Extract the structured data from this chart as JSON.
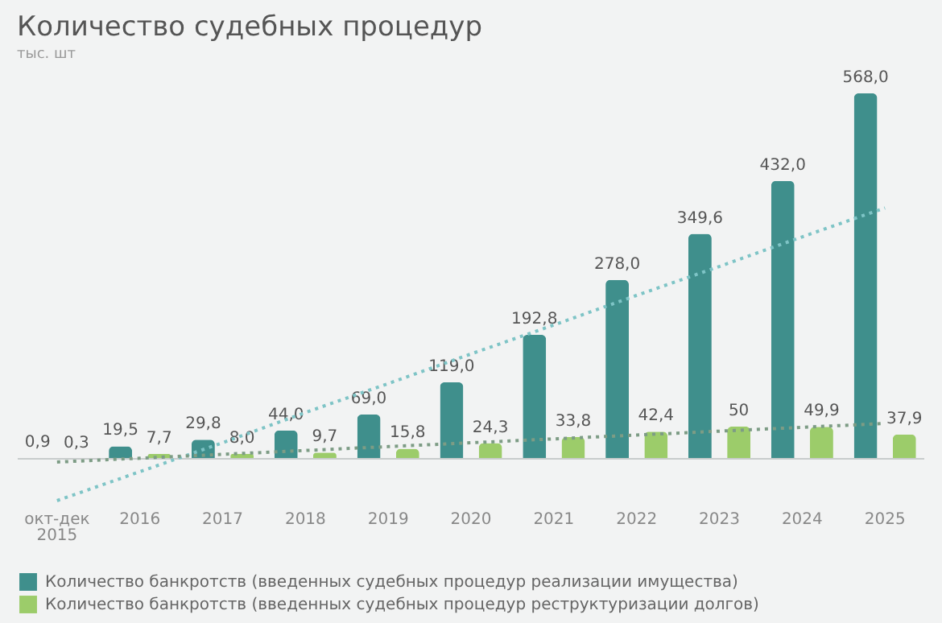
{
  "chart_data": {
    "type": "bar",
    "title": "Количество судебных процедур",
    "subtitle": "тыс. шт",
    "categories": [
      "окт-дек 2015",
      "2016",
      "2017",
      "2018",
      "2019",
      "2020",
      "2021",
      "2022",
      "2023",
      "2024",
      "2025"
    ],
    "series": [
      {
        "name": "Количество банкротств (введенных судебных процедур реализации имущества)",
        "color": "#3f8f8c",
        "values": [
          0.9,
          19.5,
          29.8,
          44.0,
          69.0,
          119.0,
          192.8,
          278.0,
          349.6,
          432.0,
          568.0
        ],
        "value_labels": [
          "0,9",
          "19,5",
          "29,8",
          "44,0",
          "69,0",
          "119,0",
          "192,8",
          "278,0",
          "349,6",
          "432,0",
          "568,0"
        ]
      },
      {
        "name": "Количество банкротств (введенных судебных процедур реструктуризации долгов)",
        "color": "#9ccc6a",
        "values": [
          0.3,
          7.7,
          8.0,
          9.7,
          15.8,
          24.3,
          33.8,
          42.4,
          50,
          49.9,
          37.9
        ],
        "value_labels": [
          "0,3",
          "7,7",
          "8,0",
          "9,7",
          "15,8",
          "24,3",
          "33,8",
          "42,4",
          "50",
          "49,9",
          "37,9"
        ]
      },
      {
        "type": "line",
        "color": "#7ec4c6",
        "values": [
          -65,
          -20,
          25,
          72,
          117,
          163,
          208,
          254,
          299,
          345,
          390
        ],
        "line_style": "dotted"
      },
      {
        "type": "line",
        "color": "#7d9c85",
        "values": [
          -5,
          1,
          7,
          13,
          19,
          25,
          31,
          37,
          43,
          49,
          55
        ],
        "line_style": "dotted"
      }
    ],
    "tick_labels": "x",
    "ref_lines": [
      {
        "axis": "y",
        "value": 0,
        "color": "#c8cccc"
      }
    ],
    "legend": "bottom"
  }
}
